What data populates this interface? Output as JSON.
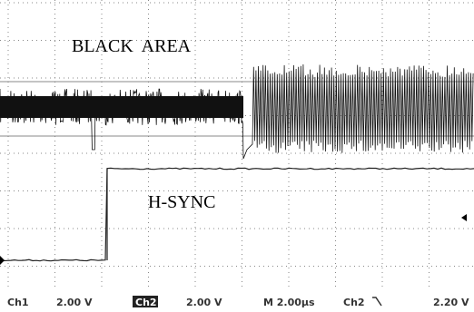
{
  "screen": {
    "labels": [
      "BLACK  AREA",
      "H-SYNC"
    ]
  },
  "status_bar": {
    "ch1": "Ch1",
    "ch1_scale": "2.00 V",
    "ch2": "Ch2",
    "ch2_scale": "2.00 V",
    "timebase": "M 2.00µs",
    "trigger_source": "Ch2",
    "trigger_level": "2.20 V"
  }
}
